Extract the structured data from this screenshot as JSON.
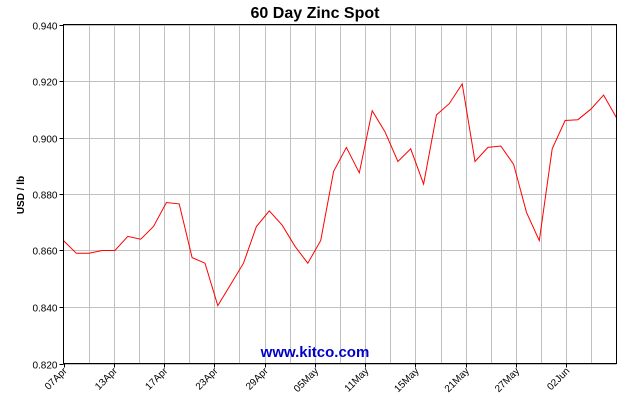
{
  "chart_data": {
    "type": "line",
    "title": "60 Day Zinc Spot",
    "xlabel": "",
    "ylabel": "USD / lb",
    "ylim": [
      0.82,
      0.94
    ],
    "yticks": [
      "0.820",
      "0.840",
      "0.860",
      "0.880",
      "0.900",
      "0.920",
      "0.940"
    ],
    "xticks": [
      "07Apr",
      "13Apr",
      "17Apr",
      "23Apr",
      "29Apr",
      "05May",
      "11May",
      "15May",
      "21May",
      "27May",
      "02Jun"
    ],
    "grid": true,
    "series": [
      {
        "name": "",
        "color": "#ff0000",
        "values": [
          0.8635,
          0.859,
          0.859,
          0.86,
          0.86,
          0.865,
          0.864,
          0.8685,
          0.877,
          0.8765,
          0.8575,
          0.8555,
          0.8405,
          0.848,
          0.8555,
          0.8685,
          0.874,
          0.869,
          0.8615,
          0.8555,
          0.8635,
          0.888,
          0.8965,
          0.8875,
          0.9095,
          0.902,
          0.8915,
          0.896,
          0.8835,
          0.908,
          0.912,
          0.919,
          0.8915,
          0.8965,
          0.897,
          0.8905,
          0.8735,
          0.8635,
          0.896,
          0.906,
          0.9063,
          0.91,
          0.915,
          0.907
        ]
      }
    ]
  },
  "watermark": {
    "text": "www.kitco.com",
    "color": "#0000cc"
  }
}
